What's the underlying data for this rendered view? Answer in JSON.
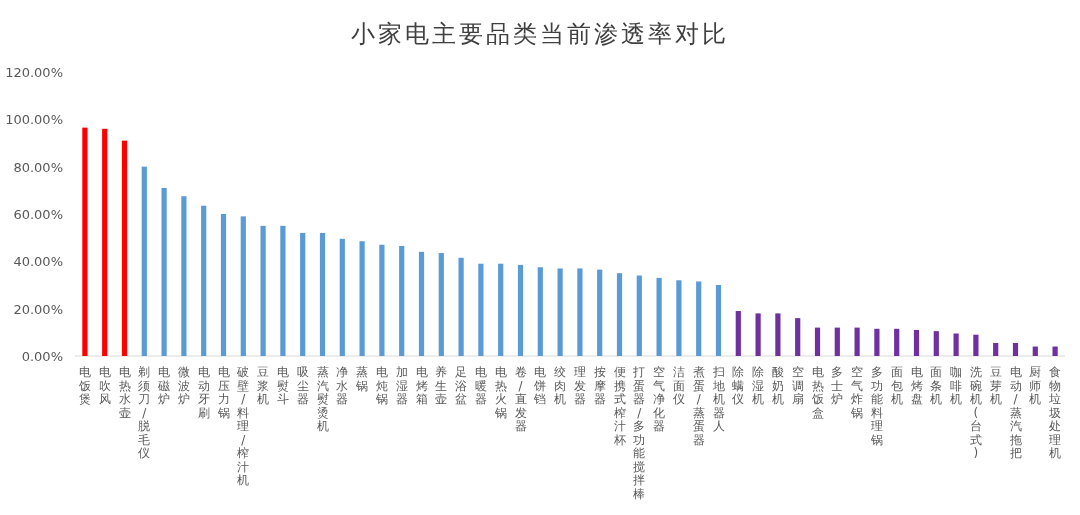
{
  "chart_data": {
    "type": "bar",
    "title": "小家电主要品类当前渗透率对比",
    "categories": [
      "电饭煲",
      "电吹风",
      "电热水壶",
      "剃须刀/脱毛仪",
      "电磁炉",
      "微波炉",
      "电动牙刷",
      "电压力锅",
      "破壁/料理/榨汁机",
      "豆浆机",
      "电熨斗",
      "吸尘器",
      "蒸汽熨烫机",
      "净水器",
      "蒸锅",
      "电炖锅",
      "加湿器",
      "电烤箱",
      "养生壶",
      "足浴盆",
      "电暖器",
      "电热火锅",
      "卷/直发器",
      "电饼铛",
      "绞肉机",
      "理发器",
      "按摩器",
      "便携式榨汁杯",
      "打蛋器/多功能搅拌棒",
      "空气净化器",
      "洁面仪",
      "煮蛋/蒸蛋器",
      "扫地机器人",
      "除螨仪",
      "除湿机",
      "酸奶机",
      "空调扇",
      "电热饭盒",
      "多士炉",
      "空气炸锅",
      "多功能料理锅",
      "面包机",
      "电烤盘",
      "面条机",
      "咖啡机",
      "洗碗机(台式)",
      "豆芽机",
      "电动/蒸汽拖把",
      "厨师机",
      "食物垃圾处理机"
    ],
    "values": [
      96.5,
      96,
      91,
      80,
      71,
      67.5,
      63.5,
      60,
      59,
      55,
      55,
      52,
      52,
      49.5,
      48.5,
      47,
      46.5,
      44,
      43.5,
      41.5,
      39,
      39,
      38.5,
      37.5,
      37,
      37,
      36.5,
      35,
      34,
      33,
      32,
      31.5,
      30,
      19,
      18,
      18,
      16,
      12,
      12,
      12,
      11.5,
      11.5,
      11,
      10.5,
      9.5,
      9,
      5.5,
      5.5,
      4,
      4
    ],
    "colors": [
      "#ff0000",
      "#ff0000",
      "#ff0000",
      "#5b9bd5",
      "#5b9bd5",
      "#5b9bd5",
      "#5b9bd5",
      "#5b9bd5",
      "#5b9bd5",
      "#5b9bd5",
      "#5b9bd5",
      "#5b9bd5",
      "#5b9bd5",
      "#5b9bd5",
      "#5b9bd5",
      "#5b9bd5",
      "#5b9bd5",
      "#5b9bd5",
      "#5b9bd5",
      "#5b9bd5",
      "#5b9bd5",
      "#5b9bd5",
      "#5b9bd5",
      "#5b9bd5",
      "#5b9bd5",
      "#5b9bd5",
      "#5b9bd5",
      "#5b9bd5",
      "#5b9bd5",
      "#5b9bd5",
      "#5b9bd5",
      "#5b9bd5",
      "#5b9bd5",
      "#7030a0",
      "#7030a0",
      "#7030a0",
      "#7030a0",
      "#7030a0",
      "#7030a0",
      "#7030a0",
      "#7030a0",
      "#7030a0",
      "#7030a0",
      "#7030a0",
      "#7030a0",
      "#7030a0",
      "#7030a0",
      "#7030a0",
      "#7030a0",
      "#7030a0"
    ],
    "ylim": [
      0,
      120
    ],
    "yticks": [
      {
        "value": 0,
        "label": "0.00%"
      },
      {
        "value": 20,
        "label": "20.00%"
      },
      {
        "value": 40,
        "label": "40.00%"
      },
      {
        "value": 60,
        "label": "60.00%"
      },
      {
        "value": 80,
        "label": "80.00%"
      },
      {
        "value": 100,
        "label": "100.00%"
      },
      {
        "value": 120,
        "label": "120.00%"
      }
    ]
  }
}
